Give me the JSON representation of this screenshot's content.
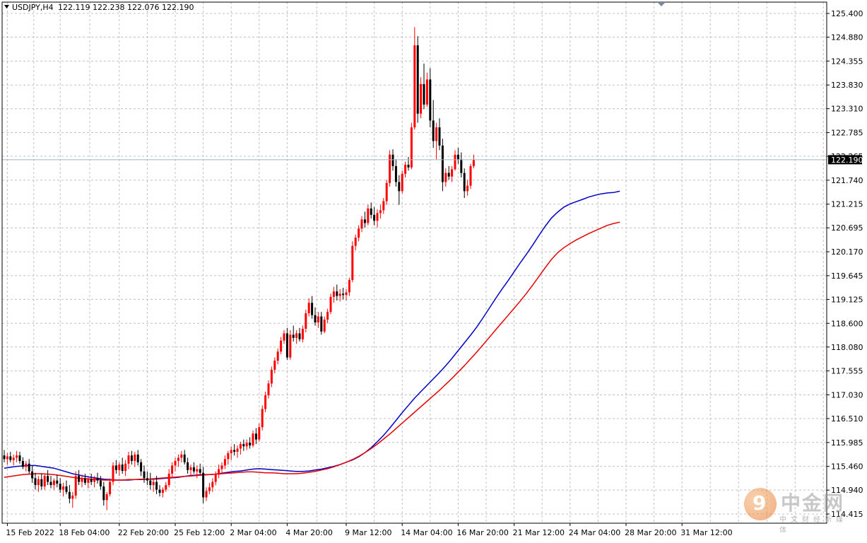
{
  "header": {
    "symbol": "USDJPY,H4",
    "ohlc": "122.119 122.238 122.076 122.190"
  },
  "current_price": {
    "label": "122.190",
    "value": 122.19
  },
  "watermark": {
    "logo_char": "9",
    "name": "中金网",
    "sub": "中文财经新媒体"
  },
  "colors": {
    "bull_candle": "#ff0000",
    "bear_candle": "#000000",
    "ma_fast": "#0000c8",
    "ma_slow": "#e60000",
    "grid": "#c0c0c0"
  },
  "chart_data": {
    "type": "candlestick",
    "symbol": "USDJPY",
    "timeframe": "H4",
    "ylim": [
      114.4,
      125.7
    ],
    "y_ticks": [
      "125.400",
      "124.880",
      "124.355",
      "123.830",
      "123.310",
      "122.785",
      "122.265",
      "121.740",
      "121.215",
      "120.695",
      "120.170",
      "119.645",
      "119.125",
      "118.600",
      "118.080",
      "117.555",
      "117.030",
      "116.510",
      "115.985",
      "115.460",
      "114.940",
      "114.415"
    ],
    "x_labels": [
      "15 Feb 2022",
      "18 Feb 04:00",
      "22 Feb 20:00",
      "25 Feb 12:00",
      "2 Mar 04:00",
      "4 Mar 20:00",
      "9 Mar 12:00",
      "14 Mar 04:00",
      "16 Mar 20:00",
      "21 Mar 12:00",
      "24 Mar 04:00",
      "28 Mar 20:00",
      "31 Mar 12:00"
    ],
    "x_label_bars": [
      1,
      18,
      37,
      55,
      73,
      91,
      110,
      128,
      146,
      164,
      182,
      200,
      218
    ],
    "grid": true,
    "candles": [
      [
        115.7,
        115.82,
        115.55,
        115.62
      ],
      [
        115.62,
        115.75,
        115.5,
        115.68
      ],
      [
        115.68,
        115.78,
        115.55,
        115.6
      ],
      [
        115.6,
        115.72,
        115.48,
        115.65
      ],
      [
        115.65,
        115.8,
        115.55,
        115.7
      ],
      [
        115.7,
        115.78,
        115.52,
        115.58
      ],
      [
        115.58,
        115.66,
        115.4,
        115.45
      ],
      [
        115.45,
        115.58,
        115.35,
        115.52
      ],
      [
        115.52,
        115.62,
        115.3,
        115.35
      ],
      [
        115.35,
        115.48,
        115.1,
        115.2
      ],
      [
        115.2,
        115.32,
        114.95,
        115.05
      ],
      [
        115.05,
        115.25,
        114.9,
        115.18
      ],
      [
        115.18,
        115.3,
        114.95,
        115.02
      ],
      [
        115.02,
        115.3,
        114.95,
        115.25
      ],
      [
        115.25,
        115.38,
        115.05,
        115.12
      ],
      [
        115.12,
        115.25,
        114.98,
        115.05
      ],
      [
        115.05,
        115.2,
        114.95,
        115.15
      ],
      [
        115.15,
        115.28,
        115.0,
        115.08
      ],
      [
        115.08,
        115.2,
        114.88,
        114.95
      ],
      [
        114.95,
        115.1,
        114.8,
        115.02
      ],
      [
        115.02,
        115.15,
        114.85,
        114.9
      ],
      [
        114.9,
        115.05,
        114.65,
        114.75
      ],
      [
        114.75,
        114.9,
        114.55,
        114.82
      ],
      [
        114.82,
        115.35,
        114.75,
        115.25
      ],
      [
        115.25,
        115.38,
        115.05,
        115.12
      ],
      [
        115.12,
        115.28,
        115.0,
        115.2
      ],
      [
        115.2,
        115.3,
        115.05,
        115.1
      ],
      [
        115.1,
        115.25,
        114.98,
        115.18
      ],
      [
        115.18,
        115.3,
        115.05,
        115.12
      ],
      [
        115.12,
        115.25,
        115.0,
        115.2
      ],
      [
        115.2,
        115.32,
        115.08,
        115.15
      ],
      [
        115.15,
        115.25,
        114.95,
        115.02
      ],
      [
        115.02,
        115.12,
        114.6,
        114.72
      ],
      [
        114.72,
        114.9,
        114.5,
        114.85
      ],
      [
        114.85,
        115.2,
        114.8,
        115.12
      ],
      [
        115.12,
        115.55,
        115.05,
        115.48
      ],
      [
        115.48,
        115.6,
        115.3,
        115.38
      ],
      [
        115.38,
        115.55,
        115.25,
        115.5
      ],
      [
        115.5,
        115.65,
        115.3,
        115.36
      ],
      [
        115.36,
        115.6,
        115.25,
        115.52
      ],
      [
        115.52,
        115.78,
        115.4,
        115.7
      ],
      [
        115.7,
        115.8,
        115.5,
        115.58
      ],
      [
        115.58,
        115.78,
        115.45,
        115.72
      ],
      [
        115.72,
        115.82,
        115.48,
        115.55
      ],
      [
        115.55,
        115.62,
        115.25,
        115.35
      ],
      [
        115.35,
        115.48,
        115.1,
        115.2
      ],
      [
        115.2,
        115.35,
        115.05,
        115.15
      ],
      [
        115.15,
        115.32,
        114.95,
        115.05
      ],
      [
        115.05,
        115.18,
        114.9,
        115.12
      ],
      [
        115.12,
        115.25,
        114.85,
        114.95
      ],
      [
        114.95,
        115.05,
        114.8,
        114.88
      ],
      [
        114.88,
        115.0,
        114.78,
        114.95
      ],
      [
        114.95,
        115.12,
        114.9,
        115.05
      ],
      [
        115.05,
        115.4,
        115.0,
        115.3
      ],
      [
        115.3,
        115.55,
        115.2,
        115.48
      ],
      [
        115.48,
        115.65,
        115.35,
        115.58
      ],
      [
        115.58,
        115.72,
        115.45,
        115.65
      ],
      [
        115.65,
        115.8,
        115.55,
        115.72
      ],
      [
        115.72,
        115.82,
        115.5,
        115.55
      ],
      [
        115.55,
        115.65,
        115.3,
        115.38
      ],
      [
        115.38,
        115.5,
        115.25,
        115.44
      ],
      [
        115.44,
        115.55,
        115.3,
        115.35
      ],
      [
        115.35,
        115.48,
        115.2,
        115.4
      ],
      [
        115.4,
        115.52,
        115.28,
        115.32
      ],
      [
        115.32,
        115.45,
        114.65,
        114.78
      ],
      [
        114.78,
        115.0,
        114.7,
        114.92
      ],
      [
        114.92,
        115.1,
        114.85,
        115.0
      ],
      [
        115.0,
        115.2,
        114.9,
        115.12
      ],
      [
        115.12,
        115.35,
        115.05,
        115.28
      ],
      [
        115.28,
        115.5,
        115.2,
        115.4
      ],
      [
        115.4,
        115.55,
        115.3,
        115.48
      ],
      [
        115.48,
        115.7,
        115.4,
        115.62
      ],
      [
        115.62,
        115.8,
        115.5,
        115.75
      ],
      [
        115.75,
        115.9,
        115.6,
        115.82
      ],
      [
        115.82,
        115.95,
        115.7,
        115.78
      ],
      [
        115.78,
        115.92,
        115.65,
        115.85
      ],
      [
        115.85,
        116.0,
        115.72,
        115.95
      ],
      [
        115.95,
        116.05,
        115.8,
        115.9
      ],
      [
        115.9,
        116.05,
        115.82,
        115.98
      ],
      [
        115.98,
        116.1,
        115.85,
        115.92
      ],
      [
        115.92,
        116.25,
        115.88,
        116.18
      ],
      [
        116.18,
        116.3,
        115.95,
        116.05
      ],
      [
        116.05,
        116.4,
        116.0,
        116.32
      ],
      [
        116.32,
        116.8,
        116.25,
        116.72
      ],
      [
        116.72,
        117.1,
        116.65,
        117.02
      ],
      [
        117.02,
        117.35,
        116.95,
        117.28
      ],
      [
        117.28,
        117.65,
        117.2,
        117.58
      ],
      [
        117.58,
        117.85,
        117.5,
        117.78
      ],
      [
        117.78,
        118.05,
        117.7,
        117.98
      ],
      [
        117.98,
        118.3,
        117.92,
        118.22
      ],
      [
        118.22,
        118.45,
        118.15,
        118.38
      ],
      [
        118.38,
        118.5,
        117.8,
        117.85
      ],
      [
        117.85,
        118.45,
        117.8,
        118.35
      ],
      [
        118.35,
        118.55,
        118.2,
        118.28
      ],
      [
        118.28,
        118.45,
        118.15,
        118.38
      ],
      [
        118.38,
        118.5,
        118.2,
        118.25
      ],
      [
        118.25,
        118.55,
        118.18,
        118.48
      ],
      [
        118.48,
        118.9,
        118.4,
        118.82
      ],
      [
        118.82,
        119.15,
        118.75,
        119.05
      ],
      [
        119.05,
        119.2,
        118.7,
        118.78
      ],
      [
        118.78,
        118.95,
        118.55,
        118.62
      ],
      [
        118.62,
        118.85,
        118.5,
        118.75
      ],
      [
        118.75,
        118.85,
        118.35,
        118.42
      ],
      [
        118.42,
        118.75,
        118.38,
        118.68
      ],
      [
        118.68,
        118.92,
        118.6,
        118.85
      ],
      [
        118.85,
        119.25,
        118.8,
        119.18
      ],
      [
        119.18,
        119.4,
        119.05,
        119.3
      ],
      [
        119.3,
        119.45,
        119.1,
        119.2
      ],
      [
        119.2,
        119.35,
        119.08,
        119.25
      ],
      [
        119.25,
        119.38,
        119.12,
        119.22
      ],
      [
        119.22,
        119.35,
        119.1,
        119.28
      ],
      [
        119.28,
        119.6,
        119.2,
        119.55
      ],
      [
        119.55,
        120.4,
        119.5,
        120.3
      ],
      [
        120.3,
        120.55,
        120.2,
        120.48
      ],
      [
        120.48,
        120.75,
        120.4,
        120.68
      ],
      [
        120.68,
        120.95,
        120.6,
        120.88
      ],
      [
        120.88,
        121.05,
        120.7,
        120.8
      ],
      [
        120.8,
        121.2,
        120.75,
        121.12
      ],
      [
        121.12,
        121.25,
        120.9,
        120.98
      ],
      [
        120.98,
        121.15,
        120.75,
        120.85
      ],
      [
        120.85,
        121.1,
        120.7,
        121.02
      ],
      [
        121.02,
        121.2,
        120.9,
        121.08
      ],
      [
        121.08,
        121.35,
        121.0,
        121.28
      ],
      [
        121.28,
        121.75,
        121.2,
        121.68
      ],
      [
        121.68,
        122.4,
        121.6,
        122.3
      ],
      [
        122.3,
        122.42,
        121.95,
        122.05
      ],
      [
        122.05,
        122.2,
        121.6,
        121.7
      ],
      [
        121.7,
        121.85,
        121.2,
        121.5
      ],
      [
        121.5,
        121.95,
        121.45,
        121.88
      ],
      [
        121.88,
        122.15,
        121.8,
        122.08
      ],
      [
        122.08,
        122.25,
        121.95,
        122.02
      ],
      [
        122.02,
        123.0,
        121.98,
        122.9
      ],
      [
        122.9,
        125.1,
        122.85,
        124.7
      ],
      [
        124.7,
        124.9,
        123.0,
        123.2
      ],
      [
        123.2,
        124.0,
        123.1,
        123.85
      ],
      [
        123.85,
        124.3,
        123.3,
        123.4
      ],
      [
        123.4,
        124.1,
        123.35,
        123.95
      ],
      [
        123.95,
        124.2,
        122.9,
        123.05
      ],
      [
        123.05,
        123.5,
        122.45,
        122.6
      ],
      [
        122.6,
        123.0,
        122.2,
        122.9
      ],
      [
        122.9,
        123.1,
        122.4,
        122.5
      ],
      [
        122.5,
        122.65,
        121.5,
        121.7
      ],
      [
        121.7,
        122.0,
        121.6,
        121.9
      ],
      [
        121.9,
        122.05,
        121.75,
        121.82
      ],
      [
        121.82,
        122.05,
        121.7,
        121.98
      ],
      [
        121.98,
        122.4,
        121.95,
        122.3
      ],
      [
        122.3,
        122.45,
        122.1,
        122.2
      ],
      [
        122.2,
        122.35,
        121.8,
        121.9
      ],
      [
        121.9,
        122.0,
        121.35,
        121.5
      ],
      [
        121.5,
        121.75,
        121.4,
        121.62
      ],
      [
        121.62,
        122.1,
        121.55,
        122.05
      ],
      [
        122.05,
        122.3,
        122.0,
        122.19
      ]
    ],
    "series": [
      {
        "name": "",
        "color": "#0000c8",
        "values": [
          115.42,
          115.44,
          115.46,
          115.47,
          115.48,
          115.48,
          115.46,
          115.44,
          115.42,
          115.38,
          115.34,
          115.3,
          115.27,
          115.24,
          115.22,
          115.2,
          115.18,
          115.17,
          115.16,
          115.16,
          115.16,
          115.17,
          115.17,
          115.18,
          115.18,
          115.19,
          115.2,
          115.21,
          115.22,
          115.24,
          115.26,
          115.27,
          115.28,
          115.28,
          115.29,
          115.31,
          115.33,
          115.35,
          115.36,
          115.38,
          115.4,
          115.41,
          115.4,
          115.39,
          115.38,
          115.37,
          115.36,
          115.35,
          115.35,
          115.36,
          115.38,
          115.4,
          115.43,
          115.46,
          115.5,
          115.55,
          115.6,
          115.67,
          115.76,
          115.87,
          116.0,
          116.14,
          116.3,
          116.47,
          116.64,
          116.8,
          116.96,
          117.1,
          117.24,
          117.38,
          117.52,
          117.67,
          117.83,
          118.0,
          118.17,
          118.34,
          118.52,
          118.72,
          118.93,
          119.14,
          119.34,
          119.53,
          119.73,
          119.93,
          120.12,
          120.32,
          120.53,
          120.73,
          120.91,
          121.04,
          121.15,
          121.22,
          121.27,
          121.32,
          121.37,
          121.41,
          121.44,
          121.46,
          121.47,
          121.5
        ]
      },
      {
        "name": "",
        "color": "#e60000",
        "values": [
          115.22,
          115.24,
          115.26,
          115.28,
          115.29,
          115.3,
          115.3,
          115.29,
          115.28,
          115.26,
          115.24,
          115.22,
          115.2,
          115.19,
          115.18,
          115.17,
          115.16,
          115.16,
          115.16,
          115.16,
          115.17,
          115.17,
          115.18,
          115.18,
          115.19,
          115.2,
          115.21,
          115.22,
          115.23,
          115.24,
          115.25,
          115.26,
          115.27,
          115.28,
          115.29,
          115.3,
          115.31,
          115.32,
          115.33,
          115.34,
          115.34,
          115.33,
          115.32,
          115.32,
          115.31,
          115.3,
          115.3,
          115.3,
          115.31,
          115.33,
          115.35,
          115.38,
          115.41,
          115.45,
          115.5,
          115.55,
          115.61,
          115.68,
          115.76,
          115.85,
          115.95,
          116.06,
          116.17,
          116.29,
          116.41,
          116.53,
          116.65,
          116.77,
          116.89,
          117.01,
          117.13,
          117.26,
          117.39,
          117.53,
          117.67,
          117.82,
          117.97,
          118.13,
          118.29,
          118.45,
          118.61,
          118.77,
          118.93,
          119.09,
          119.26,
          119.44,
          119.63,
          119.82,
          120.0,
          120.15,
          120.26,
          120.35,
          120.43,
          120.5,
          120.57,
          120.63,
          120.69,
          120.75,
          120.79,
          120.82
        ]
      }
    ]
  }
}
